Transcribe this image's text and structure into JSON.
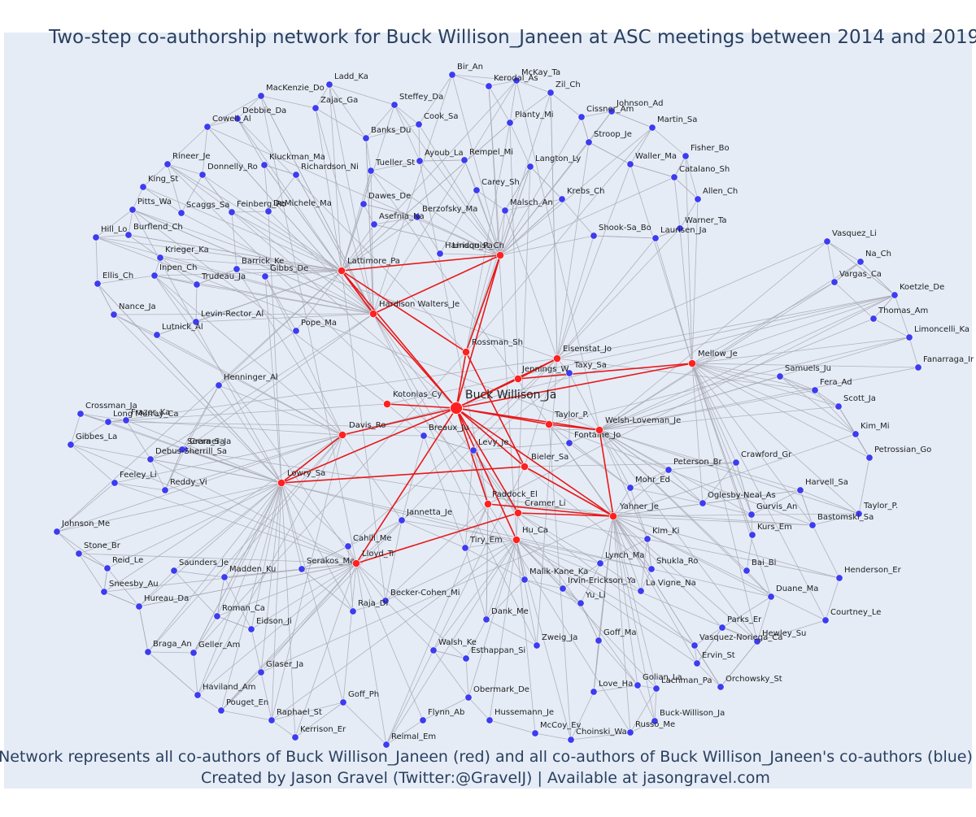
{
  "title": "Two-step co-authorship network for Buck Willison_Janeen at ASC meetings between 2014 and 2019",
  "caption_line1": "Network represents all co-authors of Buck Willison_Janeen (red) and all co-authors of Buck Willison_Janeen's co-authors (blue)",
  "caption_line2": "Created by Jason Gravel (Twitter:@GravelJ) | Available at jasongravel.com",
  "colors": {
    "plot_background": "#e5ecf6",
    "red_node": "#ff2020",
    "blue_node": "#3c3cf0",
    "red_edge": "#e81818",
    "gray_edge": "#a8a8b4",
    "title": "#2a3f5f"
  },
  "center_node": {
    "label": "Buck Willison_Ja"
  },
  "red_nodes": [
    "Lattimore_Pa",
    "Lindquist_Ch",
    "Hardison Walters_Je",
    "Rossman_Sh",
    "Eisenstat_Jo",
    "Jennings_W",
    "Kotonias_Cy",
    "Mellow_Je",
    "Taylor_P.",
    "Welsh-Loveman_Je",
    "Davis_Ro",
    "Bieler_Sa",
    "Lowry_Sa",
    "Paddock_El",
    "Cramer_Li",
    "Yahner_Je",
    "Hu_Ca",
    "Lloyd_Tr"
  ],
  "blue_nodes": [
    "Bir_An",
    "McKay_Ta",
    "Kerodal_As",
    "Ladd_Ka",
    "Zil_Ch",
    "MacKenzie_Do",
    "Steffey_Da",
    "Johnson_Ad",
    "Zajac_Ga",
    "Cissner_Am",
    "Debbie_Da",
    "Cook_Sa",
    "Planty_Mi",
    "Cowell_Al",
    "Martin_Sa",
    "Banks_Du",
    "Stroop_Je",
    "Fisher_Bo",
    "Rineer_Je",
    "Kluckman_Ma",
    "Ayoub_La",
    "Rempel_Mi",
    "Langton_Ly",
    "Waller_Ma",
    "Donnelly_Ro",
    "Richardson_Ni",
    "Tueller_St",
    "Catalano_Sh",
    "King_St",
    "Carey_Sh",
    "Krebs_Ch",
    "Allen_Ch",
    "Pitts_Wa",
    "Scaggs_Sa",
    "Feinberg_Ro",
    "DeMichele_Ma",
    "Dawes_De",
    "Malsch_An",
    "Warner_Ta",
    "Berzofsky_Ma",
    "Hill_Lo",
    "Burflend_Ch",
    "Asefnia_Na",
    "Laurisen_Ja",
    "Shook-Sa_Bo",
    "Krieger_Ka",
    "Harrison_Pa",
    "Barrick_Ke",
    "Ellis_Ch",
    "Inpen_Ch",
    "Gibbs_De",
    "Trudeau_Ja",
    "Nance_Ja",
    "Levin-Rector_Al",
    "Lutnick_Al",
    "Pope_Ma",
    "Vasquez_Li",
    "Na_Ch",
    "Vargas_Ca",
    "Koetzle_De",
    "Thomas_Am",
    "Limoncelli_Ka",
    "Fanarraga_Ir",
    "Taxy_Sa",
    "Samuels_Ju",
    "Henninger_Al",
    "Fera_Ad",
    "Crossman_Ja",
    "Scott_Ja",
    "Long Murray_Ca",
    "Frazer_Ka",
    "Kim_Mi",
    "Breaux_Ju",
    "Fontaine_Jo",
    "Gibbes_La",
    "Cramer_Ja",
    "Seera_Sa",
    "Levy_Je",
    "Petrossian_Go",
    "Debus-Sherrill_Sa",
    "Crawford_Gr",
    "Peterson_Br",
    "Feeley_Li",
    "Reddy_Vi",
    "Mohr_Ed",
    "Harvell_Sa",
    "Oglesby-Neal_As",
    "Taylor_P.",
    "Gurvis_An",
    "Jannetta_Je",
    "Bastomski_Sa",
    "Johnson_Me",
    "Kurs_Em",
    "Kim_Ki",
    "Stone_Br",
    "Cahill_Me",
    "Tiry_Em",
    "Lynch_Ma",
    "Shukla_Ro",
    "Bai_Bi",
    "Reid_Le",
    "Saunders_Je",
    "Serakos_Ma",
    "Henderson_Er",
    "Madden_Ku",
    "Malik-Kane_Ka",
    "Sneesby_Au",
    "Irvin-Erickson_Ya",
    "La Vigne_Na",
    "Duane_Ma",
    "Becker-Cohen_Mi",
    "Yu_Li",
    "Hureau_Da",
    "Raja_Di",
    "Roman_Ca",
    "Dank_Me",
    "Courtney_Le",
    "Parks_Er",
    "Eidson_Ji",
    "Hewley_Su",
    "Vasquez-Noriega_Ca",
    "Goff_Ma",
    "Zweig_Ja",
    "Walsh_Ke",
    "Braga_An",
    "Geller_Am",
    "Esthappan_Si",
    "Ervin_St",
    "Glaser_Ja",
    "Golian_La",
    "Lachman_Pa",
    "Orchowsky_St",
    "Love_Ha",
    "Haviland_Am",
    "Obermark_De",
    "Goff_Ph",
    "Pouget_En",
    "Hussemann_Je",
    "Buck-Willison_Ja",
    "Flynn_Ab",
    "Raphael_St",
    "McCoy_Ev",
    "Russo_Me",
    "Choinski_Wa",
    "Kerrison_Er",
    "Reimal_Em"
  ]
}
